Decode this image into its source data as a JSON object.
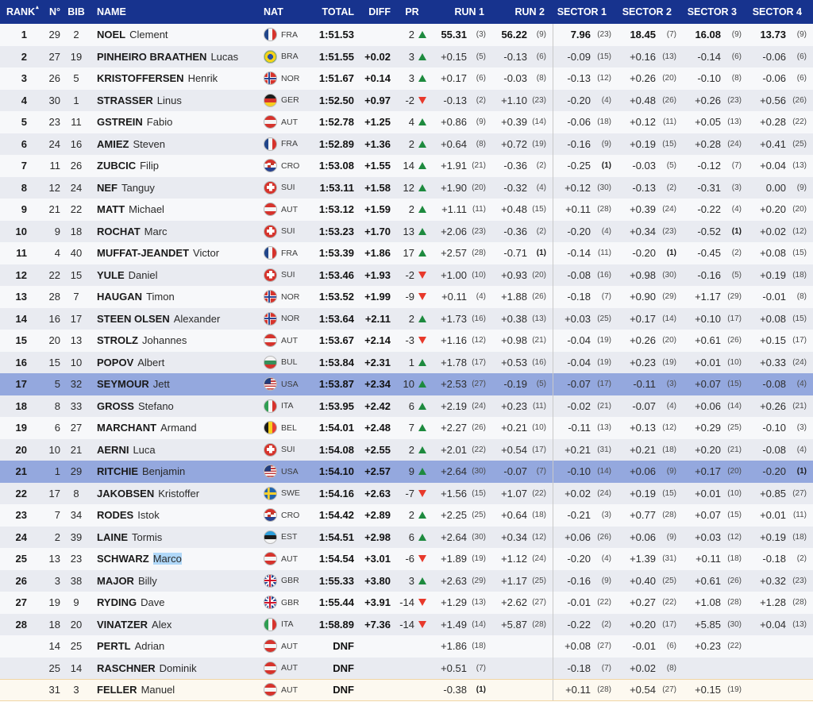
{
  "header": {
    "rank": "RANK",
    "sort_icon": "▴",
    "n": "N°",
    "bib": "BIB",
    "name": "NAME",
    "nat": "NAT",
    "total": "TOTAL",
    "diff": "DIFF",
    "pr": "PR",
    "run1": "RUN 1",
    "run2": "RUN 2",
    "sector1": "SECTOR 1",
    "sector2": "SECTOR 2",
    "sector3": "SECTOR 3",
    "sector4": "SECTOR 4"
  },
  "colors": {
    "header_bg": "#17338e",
    "header_text": "#ffffff",
    "row_odd": "#f7f8fa",
    "row_even": "#e9ebf1",
    "highlight_row": "#94a8de",
    "gain_green": "#1d8a3e",
    "loss_red": "#e8392b",
    "text_selection": "#b0d8f8",
    "hover_row_bg": "#fdf9f0",
    "hover_row_border": "#f0d5a4",
    "divider": "#c9c9c9"
  },
  "rows": [
    {
      "rank": "1",
      "n": "29",
      "bib": "2",
      "last": "NOEL",
      "first": "Clement",
      "nat": "FRA",
      "flag": "fra",
      "total": "1:51.53",
      "diff": "",
      "pr": "2",
      "dir": "up",
      "r1": "55.31",
      "r1k": "(3)",
      "r2": "56.22",
      "r2k": "(9)",
      "s1": "7.96",
      "s1k": "(23)",
      "s2": "18.45",
      "s2k": "(7)",
      "s3": "16.08",
      "s3k": "(9)",
      "s4": "13.73",
      "s4k": "(9)",
      "leader": true
    },
    {
      "rank": "2",
      "n": "27",
      "bib": "19",
      "last": "PINHEIRO BRAATHEN",
      "first": "Lucas",
      "nat": "BRA",
      "flag": "bra",
      "total": "1:51.55",
      "diff": "+0.02",
      "pr": "3",
      "dir": "up",
      "r1": "+0.15",
      "r1k": "(5)",
      "r2": "-0.13",
      "r2k": "(6)",
      "s1": "-0.09",
      "s1k": "(15)",
      "s2": "+0.16",
      "s2k": "(13)",
      "s3": "-0.14",
      "s3k": "(6)",
      "s4": "-0.06",
      "s4k": "(6)"
    },
    {
      "rank": "3",
      "n": "26",
      "bib": "5",
      "last": "KRISTOFFERSEN",
      "first": "Henrik",
      "nat": "NOR",
      "flag": "nor",
      "total": "1:51.67",
      "diff": "+0.14",
      "pr": "3",
      "dir": "up",
      "r1": "+0.17",
      "r1k": "(6)",
      "r2": "-0.03",
      "r2k": "(8)",
      "s1": "-0.13",
      "s1k": "(12)",
      "s2": "+0.26",
      "s2k": "(20)",
      "s3": "-0.10",
      "s3k": "(8)",
      "s4": "-0.06",
      "s4k": "(6)"
    },
    {
      "rank": "4",
      "n": "30",
      "bib": "1",
      "last": "STRASSER",
      "first": "Linus",
      "nat": "GER",
      "flag": "ger",
      "total": "1:52.50",
      "diff": "+0.97",
      "pr": "-2",
      "dir": "down",
      "r1": "-0.13",
      "r1k": "(2)",
      "r2": "+1.10",
      "r2k": "(23)",
      "s1": "-0.20",
      "s1k": "(4)",
      "s2": "+0.48",
      "s2k": "(26)",
      "s3": "+0.26",
      "s3k": "(23)",
      "s4": "+0.56",
      "s4k": "(26)"
    },
    {
      "rank": "5",
      "n": "23",
      "bib": "11",
      "last": "GSTREIN",
      "first": "Fabio",
      "nat": "AUT",
      "flag": "aut",
      "total": "1:52.78",
      "diff": "+1.25",
      "pr": "4",
      "dir": "up",
      "r1": "+0.86",
      "r1k": "(9)",
      "r2": "+0.39",
      "r2k": "(14)",
      "s1": "-0.06",
      "s1k": "(18)",
      "s2": "+0.12",
      "s2k": "(11)",
      "s3": "+0.05",
      "s3k": "(13)",
      "s4": "+0.28",
      "s4k": "(22)"
    },
    {
      "rank": "6",
      "n": "24",
      "bib": "16",
      "last": "AMIEZ",
      "first": "Steven",
      "nat": "FRA",
      "flag": "fra",
      "total": "1:52.89",
      "diff": "+1.36",
      "pr": "2",
      "dir": "up",
      "r1": "+0.64",
      "r1k": "(8)",
      "r2": "+0.72",
      "r2k": "(19)",
      "s1": "-0.16",
      "s1k": "(9)",
      "s2": "+0.19",
      "s2k": "(15)",
      "s3": "+0.28",
      "s3k": "(24)",
      "s4": "+0.41",
      "s4k": "(25)"
    },
    {
      "rank": "7",
      "n": "11",
      "bib": "26",
      "last": "ZUBCIC",
      "first": "Filip",
      "nat": "CRO",
      "flag": "cro",
      "total": "1:53.08",
      "diff": "+1.55",
      "pr": "14",
      "dir": "up",
      "r1": "+1.91",
      "r1k": "(21)",
      "r2": "-0.36",
      "r2k": "(2)",
      "s1": "-0.25",
      "s1k": "(1)",
      "s2": "-0.03",
      "s2k": "(5)",
      "s3": "-0.12",
      "s3k": "(7)",
      "s4": "+0.04",
      "s4k": "(13)"
    },
    {
      "rank": "8",
      "n": "12",
      "bib": "24",
      "last": "NEF",
      "first": "Tanguy",
      "nat": "SUI",
      "flag": "sui",
      "total": "1:53.11",
      "diff": "+1.58",
      "pr": "12",
      "dir": "up",
      "r1": "+1.90",
      "r1k": "(20)",
      "r2": "-0.32",
      "r2k": "(4)",
      "s1": "+0.12",
      "s1k": "(30)",
      "s2": "-0.13",
      "s2k": "(2)",
      "s3": "-0.31",
      "s3k": "(3)",
      "s4": "0.00",
      "s4k": "(9)"
    },
    {
      "rank": "9",
      "n": "21",
      "bib": "22",
      "last": "MATT",
      "first": "Michael",
      "nat": "AUT",
      "flag": "aut",
      "total": "1:53.12",
      "diff": "+1.59",
      "pr": "2",
      "dir": "up",
      "r1": "+1.11",
      "r1k": "(11)",
      "r2": "+0.48",
      "r2k": "(15)",
      "s1": "+0.11",
      "s1k": "(28)",
      "s2": "+0.39",
      "s2k": "(24)",
      "s3": "-0.22",
      "s3k": "(4)",
      "s4": "+0.20",
      "s4k": "(20)"
    },
    {
      "rank": "10",
      "n": "9",
      "bib": "18",
      "last": "ROCHAT",
      "first": "Marc",
      "nat": "SUI",
      "flag": "sui",
      "total": "1:53.23",
      "diff": "+1.70",
      "pr": "13",
      "dir": "up",
      "r1": "+2.06",
      "r1k": "(23)",
      "r2": "-0.36",
      "r2k": "(2)",
      "s1": "-0.20",
      "s1k": "(4)",
      "s2": "+0.34",
      "s2k": "(23)",
      "s3": "-0.52",
      "s3k": "(1)",
      "s4": "+0.02",
      "s4k": "(12)"
    },
    {
      "rank": "11",
      "n": "4",
      "bib": "40",
      "last": "MUFFAT-JEANDET",
      "first": "Victor",
      "nat": "FRA",
      "flag": "fra",
      "total": "1:53.39",
      "diff": "+1.86",
      "pr": "17",
      "dir": "up",
      "r1": "+2.57",
      "r1k": "(28)",
      "r2": "-0.71",
      "r2k": "(1)",
      "s1": "-0.14",
      "s1k": "(11)",
      "s2": "-0.20",
      "s2k": "(1)",
      "s3": "-0.45",
      "s3k": "(2)",
      "s4": "+0.08",
      "s4k": "(15)"
    },
    {
      "rank": "12",
      "n": "22",
      "bib": "15",
      "last": "YULE",
      "first": "Daniel",
      "nat": "SUI",
      "flag": "sui",
      "total": "1:53.46",
      "diff": "+1.93",
      "pr": "-2",
      "dir": "down",
      "r1": "+1.00",
      "r1k": "(10)",
      "r2": "+0.93",
      "r2k": "(20)",
      "s1": "-0.08",
      "s1k": "(16)",
      "s2": "+0.98",
      "s2k": "(30)",
      "s3": "-0.16",
      "s3k": "(5)",
      "s4": "+0.19",
      "s4k": "(18)"
    },
    {
      "rank": "13",
      "n": "28",
      "bib": "7",
      "last": "HAUGAN",
      "first": "Timon",
      "nat": "NOR",
      "flag": "nor",
      "total": "1:53.52",
      "diff": "+1.99",
      "pr": "-9",
      "dir": "down",
      "r1": "+0.11",
      "r1k": "(4)",
      "r2": "+1.88",
      "r2k": "(26)",
      "s1": "-0.18",
      "s1k": "(7)",
      "s2": "+0.90",
      "s2k": "(29)",
      "s3": "+1.17",
      "s3k": "(29)",
      "s4": "-0.01",
      "s4k": "(8)"
    },
    {
      "rank": "14",
      "n": "16",
      "bib": "17",
      "last": "STEEN OLSEN",
      "first": "Alexander",
      "nat": "NOR",
      "flag": "nor",
      "total": "1:53.64",
      "diff": "+2.11",
      "pr": "2",
      "dir": "up",
      "r1": "+1.73",
      "r1k": "(16)",
      "r2": "+0.38",
      "r2k": "(13)",
      "s1": "+0.03",
      "s1k": "(25)",
      "s2": "+0.17",
      "s2k": "(14)",
      "s3": "+0.10",
      "s3k": "(17)",
      "s4": "+0.08",
      "s4k": "(15)"
    },
    {
      "rank": "15",
      "n": "20",
      "bib": "13",
      "last": "STROLZ",
      "first": "Johannes",
      "nat": "AUT",
      "flag": "aut",
      "total": "1:53.67",
      "diff": "+2.14",
      "pr": "-3",
      "dir": "down",
      "r1": "+1.16",
      "r1k": "(12)",
      "r2": "+0.98",
      "r2k": "(21)",
      "s1": "-0.04",
      "s1k": "(19)",
      "s2": "+0.26",
      "s2k": "(20)",
      "s3": "+0.61",
      "s3k": "(26)",
      "s4": "+0.15",
      "s4k": "(17)"
    },
    {
      "rank": "16",
      "n": "15",
      "bib": "10",
      "last": "POPOV",
      "first": "Albert",
      "nat": "BUL",
      "flag": "bul",
      "total": "1:53.84",
      "diff": "+2.31",
      "pr": "1",
      "dir": "up",
      "r1": "+1.78",
      "r1k": "(17)",
      "r2": "+0.53",
      "r2k": "(16)",
      "s1": "-0.04",
      "s1k": "(19)",
      "s2": "+0.23",
      "s2k": "(19)",
      "s3": "+0.01",
      "s3k": "(10)",
      "s4": "+0.33",
      "s4k": "(24)"
    },
    {
      "rank": "17",
      "n": "5",
      "bib": "32",
      "last": "SEYMOUR",
      "first": "Jett",
      "nat": "USA",
      "flag": "usa",
      "total": "1:53.87",
      "diff": "+2.34",
      "pr": "10",
      "dir": "up",
      "r1": "+2.53",
      "r1k": "(27)",
      "r2": "-0.19",
      "r2k": "(5)",
      "s1": "-0.07",
      "s1k": "(17)",
      "s2": "-0.11",
      "s2k": "(3)",
      "s3": "+0.07",
      "s3k": "(15)",
      "s4": "-0.08",
      "s4k": "(4)",
      "hl": true
    },
    {
      "rank": "18",
      "n": "8",
      "bib": "33",
      "last": "GROSS",
      "first": "Stefano",
      "nat": "ITA",
      "flag": "ita",
      "total": "1:53.95",
      "diff": "+2.42",
      "pr": "6",
      "dir": "up",
      "r1": "+2.19",
      "r1k": "(24)",
      "r2": "+0.23",
      "r2k": "(11)",
      "s1": "-0.02",
      "s1k": "(21)",
      "s2": "-0.07",
      "s2k": "(4)",
      "s3": "+0.06",
      "s3k": "(14)",
      "s4": "+0.26",
      "s4k": "(21)"
    },
    {
      "rank": "19",
      "n": "6",
      "bib": "27",
      "last": "MARCHANT",
      "first": "Armand",
      "nat": "BEL",
      "flag": "bel",
      "total": "1:54.01",
      "diff": "+2.48",
      "pr": "7",
      "dir": "up",
      "r1": "+2.27",
      "r1k": "(26)",
      "r2": "+0.21",
      "r2k": "(10)",
      "s1": "-0.11",
      "s1k": "(13)",
      "s2": "+0.13",
      "s2k": "(12)",
      "s3": "+0.29",
      "s3k": "(25)",
      "s4": "-0.10",
      "s4k": "(3)"
    },
    {
      "rank": "20",
      "n": "10",
      "bib": "21",
      "last": "AERNI",
      "first": "Luca",
      "nat": "SUI",
      "flag": "sui",
      "total": "1:54.08",
      "diff": "+2.55",
      "pr": "2",
      "dir": "up",
      "r1": "+2.01",
      "r1k": "(22)",
      "r2": "+0.54",
      "r2k": "(17)",
      "s1": "+0.21",
      "s1k": "(31)",
      "s2": "+0.21",
      "s2k": "(18)",
      "s3": "+0.20",
      "s3k": "(21)",
      "s4": "-0.08",
      "s4k": "(4)"
    },
    {
      "rank": "21",
      "n": "1",
      "bib": "29",
      "last": "RITCHIE",
      "first": "Benjamin",
      "nat": "USA",
      "flag": "usa",
      "total": "1:54.10",
      "diff": "+2.57",
      "pr": "9",
      "dir": "up",
      "r1": "+2.64",
      "r1k": "(30)",
      "r2": "-0.07",
      "r2k": "(7)",
      "s1": "-0.10",
      "s1k": "(14)",
      "s2": "+0.06",
      "s2k": "(9)",
      "s3": "+0.17",
      "s3k": "(20)",
      "s4": "-0.20",
      "s4k": "(1)",
      "hl": true
    },
    {
      "rank": "22",
      "n": "17",
      "bib": "8",
      "last": "JAKOBSEN",
      "first": "Kristoffer",
      "nat": "SWE",
      "flag": "swe",
      "total": "1:54.16",
      "diff": "+2.63",
      "pr": "-7",
      "dir": "down",
      "r1": "+1.56",
      "r1k": "(15)",
      "r2": "+1.07",
      "r2k": "(22)",
      "s1": "+0.02",
      "s1k": "(24)",
      "s2": "+0.19",
      "s2k": "(15)",
      "s3": "+0.01",
      "s3k": "(10)",
      "s4": "+0.85",
      "s4k": "(27)"
    },
    {
      "rank": "23",
      "n": "7",
      "bib": "34",
      "last": "RODES",
      "first": "Istok",
      "nat": "CRO",
      "flag": "cro",
      "total": "1:54.42",
      "diff": "+2.89",
      "pr": "2",
      "dir": "up",
      "r1": "+2.25",
      "r1k": "(25)",
      "r2": "+0.64",
      "r2k": "(18)",
      "s1": "-0.21",
      "s1k": "(3)",
      "s2": "+0.77",
      "s2k": "(28)",
      "s3": "+0.07",
      "s3k": "(15)",
      "s4": "+0.01",
      "s4k": "(11)"
    },
    {
      "rank": "24",
      "n": "2",
      "bib": "39",
      "last": "LAINE",
      "first": "Tormis",
      "nat": "EST",
      "flag": "est",
      "total": "1:54.51",
      "diff": "+2.98",
      "pr": "6",
      "dir": "up",
      "r1": "+2.64",
      "r1k": "(30)",
      "r2": "+0.34",
      "r2k": "(12)",
      "s1": "+0.06",
      "s1k": "(26)",
      "s2": "+0.06",
      "s2k": "(9)",
      "s3": "+0.03",
      "s3k": "(12)",
      "s4": "+0.19",
      "s4k": "(18)"
    },
    {
      "rank": "25",
      "n": "13",
      "bib": "23",
      "last": "SCHWARZ",
      "first": "Marco",
      "nat": "AUT",
      "flag": "aut",
      "total": "1:54.54",
      "diff": "+3.01",
      "pr": "-6",
      "dir": "down",
      "r1": "+1.89",
      "r1k": "(19)",
      "r2": "+1.12",
      "r2k": "(24)",
      "s1": "-0.20",
      "s1k": "(4)",
      "s2": "+1.39",
      "s2k": "(31)",
      "s3": "+0.11",
      "s3k": "(18)",
      "s4": "-0.18",
      "s4k": "(2)",
      "sel": true
    },
    {
      "rank": "26",
      "n": "3",
      "bib": "38",
      "last": "MAJOR",
      "first": "Billy",
      "nat": "GBR",
      "flag": "gbr",
      "total": "1:55.33",
      "diff": "+3.80",
      "pr": "3",
      "dir": "up",
      "r1": "+2.63",
      "r1k": "(29)",
      "r2": "+1.17",
      "r2k": "(25)",
      "s1": "-0.16",
      "s1k": "(9)",
      "s2": "+0.40",
      "s2k": "(25)",
      "s3": "+0.61",
      "s3k": "(26)",
      "s4": "+0.32",
      "s4k": "(23)"
    },
    {
      "rank": "27",
      "n": "19",
      "bib": "9",
      "last": "RYDING",
      "first": "Dave",
      "nat": "GBR",
      "flag": "gbr",
      "total": "1:55.44",
      "diff": "+3.91",
      "pr": "-14",
      "dir": "down",
      "r1": "+1.29",
      "r1k": "(13)",
      "r2": "+2.62",
      "r2k": "(27)",
      "s1": "-0.01",
      "s1k": "(22)",
      "s2": "+0.27",
      "s2k": "(22)",
      "s3": "+1.08",
      "s3k": "(28)",
      "s4": "+1.28",
      "s4k": "(28)"
    },
    {
      "rank": "28",
      "n": "18",
      "bib": "20",
      "last": "VINATZER",
      "first": "Alex",
      "nat": "ITA",
      "flag": "ita",
      "total": "1:58.89",
      "diff": "+7.36",
      "pr": "-14",
      "dir": "down",
      "r1": "+1.49",
      "r1k": "(14)",
      "r2": "+5.87",
      "r2k": "(28)",
      "s1": "-0.22",
      "s1k": "(2)",
      "s2": "+0.20",
      "s2k": "(17)",
      "s3": "+5.85",
      "s3k": "(30)",
      "s4": "+0.04",
      "s4k": "(13)"
    },
    {
      "rank": "",
      "n": "14",
      "bib": "25",
      "last": "PERTL",
      "first": "Adrian",
      "nat": "AUT",
      "flag": "aut",
      "total": "DNF",
      "diff": "",
      "pr": "",
      "dir": "",
      "r1": "+1.86",
      "r1k": "(18)",
      "r2": "",
      "r2k": "",
      "s1": "+0.08",
      "s1k": "(27)",
      "s2": "-0.01",
      "s2k": "(6)",
      "s3": "+0.23",
      "s3k": "(22)",
      "s4": "",
      "s4k": ""
    },
    {
      "rank": "",
      "n": "25",
      "bib": "14",
      "last": "RASCHNER",
      "first": "Dominik",
      "nat": "AUT",
      "flag": "aut",
      "total": "DNF",
      "diff": "",
      "pr": "",
      "dir": "",
      "r1": "+0.51",
      "r1k": "(7)",
      "r2": "",
      "r2k": "",
      "s1": "-0.18",
      "s1k": "(7)",
      "s2": "+0.02",
      "s2k": "(8)",
      "s3": "",
      "s3k": "",
      "s4": "",
      "s4k": ""
    },
    {
      "rank": "",
      "n": "31",
      "bib": "3",
      "last": "FELLER",
      "first": "Manuel",
      "nat": "AUT",
      "flag": "aut",
      "total": "DNF",
      "diff": "",
      "pr": "",
      "dir": "",
      "r1": "-0.38",
      "r1k": "(1)",
      "r2": "",
      "r2k": "",
      "s1": "+0.11",
      "s1k": "(28)",
      "s2": "+0.54",
      "s2k": "(27)",
      "s3": "+0.15",
      "s3k": "(19)",
      "s4": "",
      "s4k": "",
      "hover": true
    }
  ]
}
